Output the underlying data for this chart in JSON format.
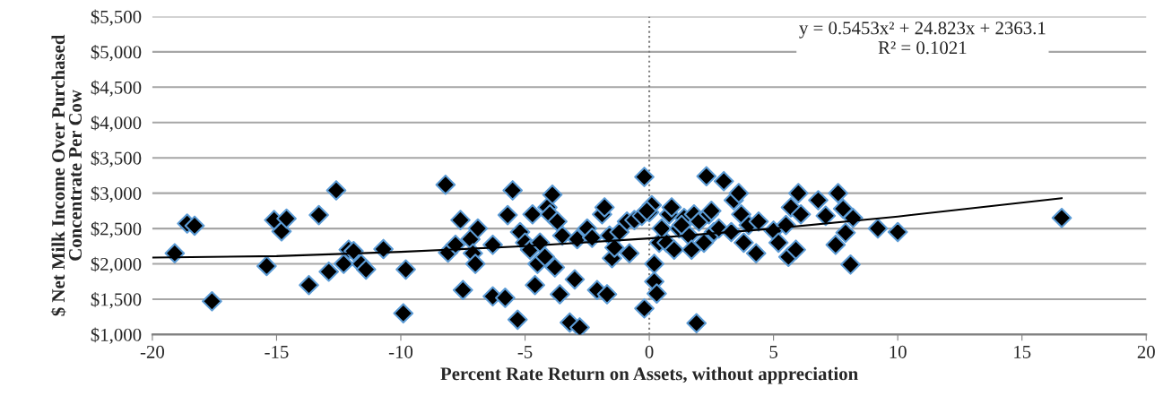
{
  "chart_data": {
    "type": "scatter",
    "xlabel": "Percent Rate Return on Assets, without appreciation",
    "ylabel": "$ Net Milk Income Over Purchased\nConcentrate Per Cow",
    "xlim": [
      -20,
      20
    ],
    "xticks": [
      -20,
      -15,
      -10,
      -5,
      0,
      5,
      10,
      15,
      20
    ],
    "ylim": [
      1000,
      5500
    ],
    "yticks": [
      {
        "value": 1000,
        "label": "$1,000"
      },
      {
        "value": 1500,
        "label": "$1,500"
      },
      {
        "value": 2000,
        "label": "$2,000"
      },
      {
        "value": 2500,
        "label": "$2,500"
      },
      {
        "value": 3000,
        "label": "$3,000"
      },
      {
        "value": 3500,
        "label": "$3,500"
      },
      {
        "value": 4000,
        "label": "$4,000"
      },
      {
        "value": 4500,
        "label": "$4,500"
      },
      {
        "value": 5000,
        "label": "$5,000"
      },
      {
        "value": 5500,
        "label": "$5,500"
      }
    ],
    "grid": "y",
    "marker": "diamond",
    "legend": false,
    "ref_lines": [
      {
        "axis": "x",
        "value": 0,
        "color": "#808080",
        "line_style": "dotted"
      }
    ],
    "annotations": [
      "y = 0.5453x² + 24.823x + 2363.1",
      "R² = 0.1021"
    ],
    "series": [
      {
        "color": "#000000",
        "x": [
          -19.1,
          -18.6,
          -18.3,
          -17.6,
          -15.4,
          -15.1,
          -14.8,
          -14.6,
          -13.7,
          -13.3,
          -12.9,
          -12.6,
          -12.3,
          -12.1,
          -11.9,
          -11.6,
          -11.4,
          -10.7,
          -9.9,
          -9.8,
          -8.2,
          -8.1,
          -7.8,
          -7.6,
          -7.5,
          -7.2,
          -7.1,
          -7.0,
          -6.9,
          -6.3,
          -6.3,
          -5.8,
          -5.7,
          -5.5,
          -5.3,
          -5.2,
          -5.0,
          -4.8,
          -4.7,
          -4.6,
          -4.5,
          -4.4,
          -4.2,
          -4.1,
          -4.0,
          -3.9,
          -3.8,
          -3.7,
          -3.6,
          -3.5,
          -3.2,
          -3.0,
          -2.9,
          -2.8,
          -2.5,
          -2.3,
          -2.1,
          -1.9,
          -1.8,
          -1.7,
          -1.6,
          -1.5,
          -1.4,
          -1.2,
          -0.9,
          -0.8,
          -0.6,
          -0.3,
          -0.2,
          -0.2,
          0.0,
          0.1,
          0.2,
          0.2,
          0.3,
          0.4,
          0.5,
          0.7,
          0.8,
          0.9,
          1.0,
          1.2,
          1.4,
          1.6,
          1.7,
          1.8,
          1.9,
          2.0,
          2.2,
          2.3,
          2.4,
          2.6,
          2.8,
          3.0,
          3.3,
          3.4,
          3.6,
          3.7,
          3.8,
          4.0,
          4.3,
          4.4,
          5.0,
          5.2,
          5.5,
          5.6,
          5.7,
          6.0,
          6.1,
          6.8,
          7.1,
          7.5,
          7.6,
          7.8,
          7.9,
          8.1,
          8.2,
          9.2,
          10.0,
          16.6,
          5.9,
          -0.1,
          1.3,
          2.5
        ],
        "values": [
          2150,
          2570,
          2540,
          1470,
          1970,
          2620,
          2460,
          2640,
          1700,
          2690,
          1890,
          3040,
          2000,
          2200,
          2180,
          2000,
          1920,
          2210,
          1300,
          1920,
          3120,
          2160,
          2270,
          2620,
          1630,
          2350,
          2150,
          2000,
          2500,
          2270,
          1540,
          1520,
          2690,
          3040,
          1210,
          2450,
          2300,
          2200,
          2700,
          1700,
          2000,
          2300,
          2100,
          2800,
          2700,
          2980,
          1950,
          2600,
          1570,
          2400,
          1170,
          1780,
          2350,
          1100,
          2500,
          2370,
          1630,
          2700,
          2800,
          1570,
          2400,
          2080,
          2230,
          2450,
          2600,
          2150,
          2620,
          2680,
          3230,
          1370,
          2730,
          2830,
          2000,
          1750,
          1580,
          2300,
          2500,
          2300,
          2700,
          2800,
          2200,
          2500,
          2650,
          2400,
          2200,
          2700,
          1160,
          2600,
          2300,
          3240,
          2700,
          2450,
          2500,
          3170,
          2450,
          2900,
          3000,
          2700,
          2300,
          2550,
          2150,
          2600,
          2470,
          2300,
          2550,
          2100,
          2800,
          3000,
          2700,
          2900,
          2680,
          2270,
          3000,
          2780,
          2440,
          1990,
          2650,
          2500,
          2450,
          2650,
          2200,
          2750,
          2550,
          2750
        ]
      },
      {
        "type": "line",
        "color": "#000000",
        "marker": "none",
        "line_style": "solid",
        "x": [
          -20,
          -15,
          -10,
          -5,
          0,
          5,
          10,
          16.6
        ],
        "values": [
          2090,
          2110,
          2170,
          2250,
          2360,
          2500,
          2670,
          2930
        ]
      }
    ]
  }
}
